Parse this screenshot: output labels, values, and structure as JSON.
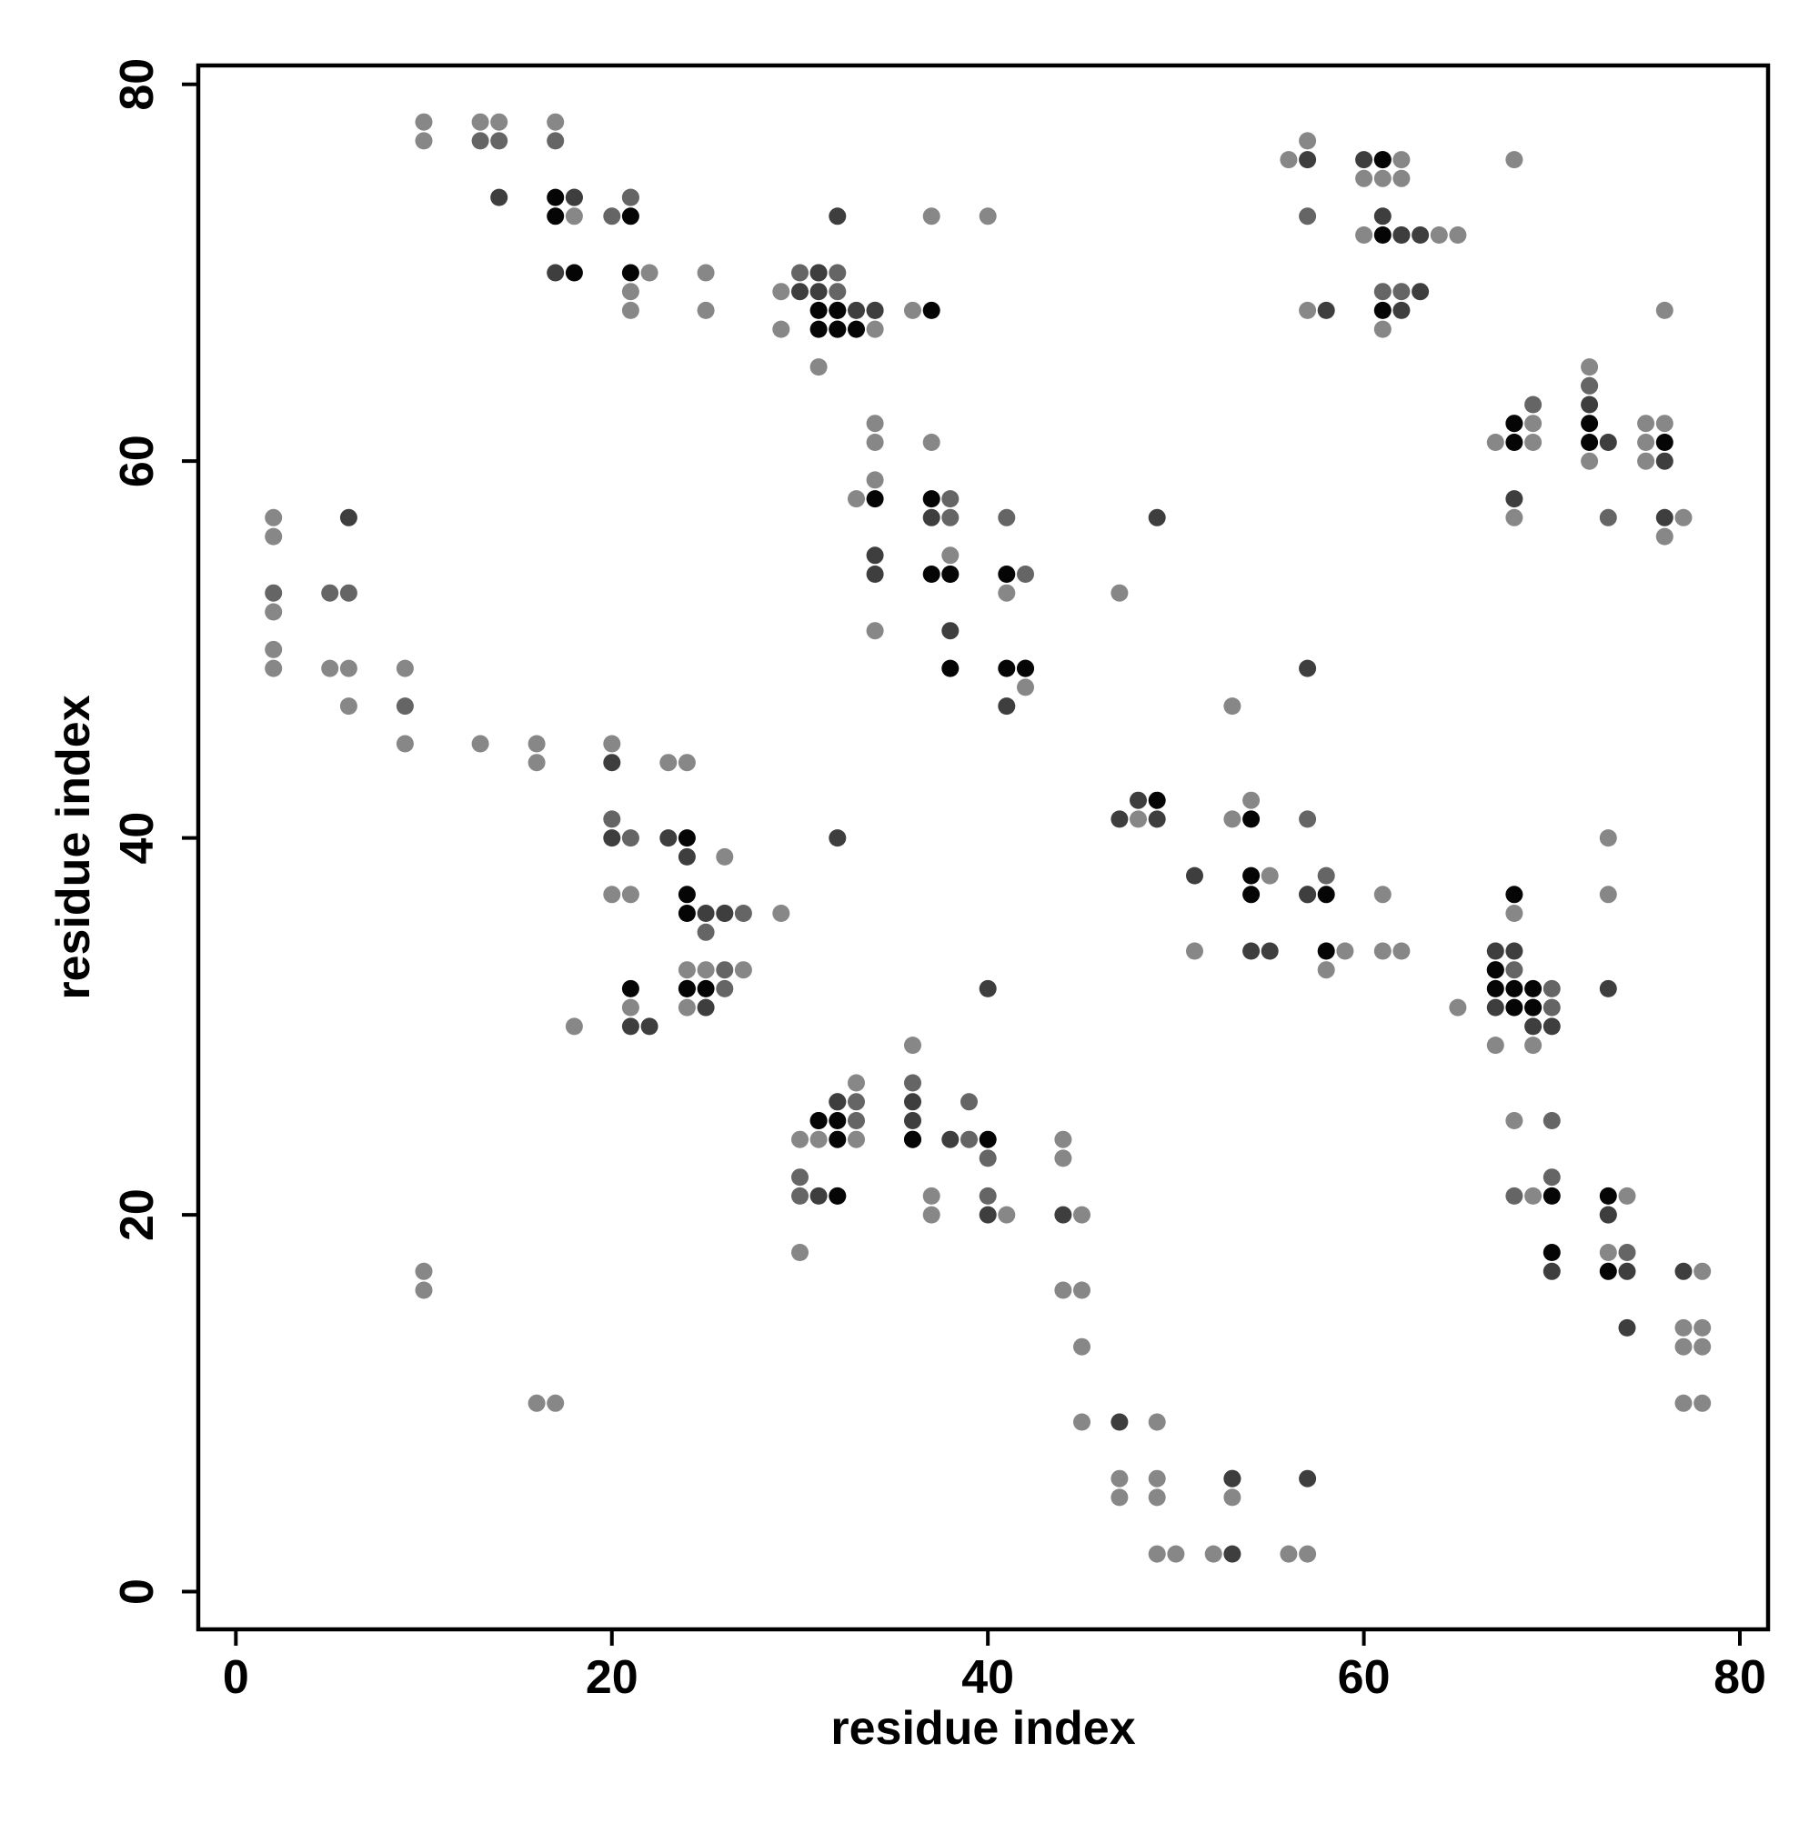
{
  "chart_data": {
    "type": "scatter",
    "title": "",
    "xlabel": "residue index",
    "ylabel": "residue index",
    "xlim": [
      -2,
      81.5
    ],
    "ylim": [
      -2,
      81
    ],
    "xticks": [
      0,
      20,
      40,
      60,
      80
    ],
    "yticks": [
      0,
      20,
      40,
      60,
      80
    ],
    "grid": false,
    "legend": "none",
    "shades": {
      "light": "#878787",
      "mid": "#656565",
      "dark": "#3e3e3e",
      "black": "#050505"
    },
    "points": {
      "light": [
        [
          10,
          78
        ],
        [
          10,
          77
        ],
        [
          13,
          78
        ],
        [
          14,
          78
        ],
        [
          17,
          78
        ],
        [
          21,
          74
        ],
        [
          18,
          73
        ],
        [
          22,
          70
        ],
        [
          25,
          70
        ],
        [
          21,
          69
        ],
        [
          21,
          68
        ],
        [
          25,
          68
        ],
        [
          29,
          69
        ],
        [
          29,
          67
        ],
        [
          34,
          67
        ],
        [
          31,
          65
        ],
        [
          36,
          68
        ],
        [
          37,
          73
        ],
        [
          40,
          73
        ],
        [
          2,
          57
        ],
        [
          2,
          56
        ],
        [
          2,
          52
        ],
        [
          2,
          50
        ],
        [
          2,
          49
        ],
        [
          5,
          49
        ],
        [
          6,
          49
        ],
        [
          6,
          47
        ],
        [
          9,
          49
        ],
        [
          9,
          45
        ],
        [
          13,
          45
        ],
        [
          16,
          45
        ],
        [
          16,
          44
        ],
        [
          20,
          45
        ],
        [
          23,
          44
        ],
        [
          24,
          44
        ],
        [
          21,
          37
        ],
        [
          20,
          37
        ],
        [
          24,
          33
        ],
        [
          25,
          33
        ],
        [
          24,
          31
        ],
        [
          21,
          31
        ],
        [
          18,
          30
        ],
        [
          26,
          39
        ],
        [
          27,
          33
        ],
        [
          29,
          36
        ],
        [
          34,
          62
        ],
        [
          34,
          61
        ],
        [
          34,
          59
        ],
        [
          33,
          58
        ],
        [
          34,
          51
        ],
        [
          37,
          61
        ],
        [
          38,
          55
        ],
        [
          41,
          53
        ],
        [
          42,
          48
        ],
        [
          36,
          29
        ],
        [
          33,
          27
        ],
        [
          30,
          24
        ],
        [
          31,
          24
        ],
        [
          33,
          24
        ],
        [
          37,
          21
        ],
        [
          37,
          20
        ],
        [
          41,
          20
        ],
        [
          45,
          20
        ],
        [
          44,
          24
        ],
        [
          44,
          23
        ],
        [
          44,
          16
        ],
        [
          45,
          16
        ],
        [
          45,
          13
        ],
        [
          45,
          9
        ],
        [
          49,
          9
        ],
        [
          47,
          6
        ],
        [
          49,
          6
        ],
        [
          47,
          5
        ],
        [
          49,
          5
        ],
        [
          49,
          2
        ],
        [
          50,
          2
        ],
        [
          52,
          2
        ],
        [
          56,
          2
        ],
        [
          57,
          2
        ],
        [
          30,
          18
        ],
        [
          10,
          17
        ],
        [
          10,
          16
        ],
        [
          16,
          10
        ],
        [
          17,
          10
        ],
        [
          47,
          53
        ],
        [
          48,
          41
        ],
        [
          53,
          47
        ],
        [
          53,
          41
        ],
        [
          54,
          42
        ],
        [
          51,
          34
        ],
        [
          55,
          38
        ],
        [
          58,
          33
        ],
        [
          59,
          34
        ],
        [
          61,
          37
        ],
        [
          61,
          34
        ],
        [
          62,
          34
        ],
        [
          56,
          76
        ],
        [
          57,
          77
        ],
        [
          57,
          68
        ],
        [
          60,
          75
        ],
        [
          60,
          72
        ],
        [
          61,
          75
        ],
        [
          62,
          76
        ],
        [
          62,
          75
        ],
        [
          61,
          67
        ],
        [
          64,
          72
        ],
        [
          65,
          72
        ],
        [
          68,
          76
        ],
        [
          68,
          57
        ],
        [
          67,
          61
        ],
        [
          69,
          62
        ],
        [
          69,
          61
        ],
        [
          72,
          65
        ],
        [
          72,
          64
        ],
        [
          72,
          60
        ],
        [
          75,
          62
        ],
        [
          75,
          61
        ],
        [
          75,
          60
        ],
        [
          76,
          62
        ],
        [
          76,
          56
        ],
        [
          77,
          57
        ],
        [
          76,
          68
        ],
        [
          65,
          31
        ],
        [
          67,
          29
        ],
        [
          68,
          36
        ],
        [
          69,
          29
        ],
        [
          68,
          25
        ],
        [
          69,
          21
        ],
        [
          73,
          40
        ],
        [
          73,
          37
        ],
        [
          74,
          21
        ],
        [
          73,
          18
        ],
        [
          78,
          17
        ],
        [
          77,
          14
        ],
        [
          78,
          14
        ],
        [
          77,
          13
        ],
        [
          78,
          13
        ],
        [
          77,
          10
        ],
        [
          78,
          10
        ],
        [
          53,
          5
        ]
      ],
      "mid": [
        [
          17,
          77
        ],
        [
          13,
          77
        ],
        [
          14,
          77
        ],
        [
          18,
          74
        ],
        [
          20,
          73
        ],
        [
          21,
          74
        ],
        [
          30,
          70
        ],
        [
          31,
          70
        ],
        [
          32,
          70
        ],
        [
          32,
          69
        ],
        [
          34,
          68
        ],
        [
          2,
          53
        ],
        [
          5,
          53
        ],
        [
          6,
          53
        ],
        [
          9,
          47
        ],
        [
          20,
          41
        ],
        [
          21,
          40
        ],
        [
          25,
          35
        ],
        [
          26,
          36
        ],
        [
          27,
          36
        ],
        [
          26,
          33
        ],
        [
          26,
          32
        ],
        [
          38,
          58
        ],
        [
          38,
          57
        ],
        [
          38,
          54
        ],
        [
          42,
          54
        ],
        [
          41,
          57
        ],
        [
          32,
          26
        ],
        [
          33,
          26
        ],
        [
          36,
          27
        ],
        [
          33,
          25
        ],
        [
          39,
          26
        ],
        [
          39,
          24
        ],
        [
          40,
          23
        ],
        [
          40,
          21
        ],
        [
          30,
          22
        ],
        [
          30,
          21
        ],
        [
          32,
          21
        ],
        [
          57,
          73
        ],
        [
          61,
          76
        ],
        [
          62,
          72
        ],
        [
          61,
          69
        ],
        [
          62,
          69
        ],
        [
          69,
          63
        ],
        [
          72,
          64
        ],
        [
          68,
          62
        ],
        [
          73,
          57
        ],
        [
          68,
          33
        ],
        [
          69,
          31
        ],
        [
          70,
          31
        ],
        [
          70,
          32
        ],
        [
          70,
          25
        ],
        [
          70,
          22
        ],
        [
          68,
          21
        ],
        [
          73,
          20
        ],
        [
          74,
          18
        ],
        [
          57,
          41
        ],
        [
          57,
          37
        ],
        [
          58,
          38
        ],
        [
          53,
          6
        ]
      ],
      "dark": [
        [
          14,
          74
        ],
        [
          17,
          70
        ],
        [
          18,
          74
        ],
        [
          32,
          73
        ],
        [
          30,
          69
        ],
        [
          31,
          70
        ],
        [
          32,
          68
        ],
        [
          33,
          68
        ],
        [
          34,
          68
        ],
        [
          31,
          69
        ],
        [
          32,
          67
        ],
        [
          6,
          57
        ],
        [
          20,
          40
        ],
        [
          20,
          44
        ],
        [
          23,
          40
        ],
        [
          24,
          39
        ],
        [
          25,
          36
        ],
        [
          25,
          31
        ],
        [
          21,
          30
        ],
        [
          22,
          30
        ],
        [
          24,
          32
        ],
        [
          26,
          36
        ],
        [
          34,
          55
        ],
        [
          34,
          54
        ],
        [
          37,
          57
        ],
        [
          38,
          51
        ],
        [
          41,
          47
        ],
        [
          42,
          49
        ],
        [
          49,
          57
        ],
        [
          49,
          41
        ],
        [
          31,
          25
        ],
        [
          32,
          26
        ],
        [
          36,
          26
        ],
        [
          36,
          25
        ],
        [
          38,
          24
        ],
        [
          40,
          20
        ],
        [
          44,
          20
        ],
        [
          36,
          24
        ],
        [
          31,
          21
        ],
        [
          47,
          9
        ],
        [
          53,
          6
        ],
        [
          57,
          6
        ],
        [
          53,
          2
        ],
        [
          32,
          40
        ],
        [
          40,
          32
        ],
        [
          57,
          76
        ],
        [
          58,
          68
        ],
        [
          60,
          76
        ],
        [
          61,
          73
        ],
        [
          62,
          72
        ],
        [
          63,
          72
        ],
        [
          63,
          69
        ],
        [
          62,
          68
        ],
        [
          68,
          58
        ],
        [
          72,
          63
        ],
        [
          73,
          61
        ],
        [
          76,
          57
        ],
        [
          76,
          60
        ],
        [
          47,
          41
        ],
        [
          48,
          42
        ],
        [
          51,
          38
        ],
        [
          54,
          34
        ],
        [
          55,
          34
        ],
        [
          57,
          49
        ],
        [
          57,
          37
        ],
        [
          67,
          34
        ],
        [
          68,
          34
        ],
        [
          67,
          33
        ],
        [
          67,
          31
        ],
        [
          69,
          30
        ],
        [
          70,
          30
        ],
        [
          73,
          32
        ],
        [
          70,
          17
        ],
        [
          74,
          17
        ],
        [
          74,
          14
        ],
        [
          77,
          17
        ],
        [
          73,
          20
        ]
      ],
      "black": [
        [
          17,
          74
        ],
        [
          17,
          73
        ],
        [
          18,
          70
        ],
        [
          21,
          73
        ],
        [
          21,
          70
        ],
        [
          31,
          68
        ],
        [
          31,
          67
        ],
        [
          32,
          67
        ],
        [
          32,
          68
        ],
        [
          33,
          67
        ],
        [
          37,
          68
        ],
        [
          24,
          40
        ],
        [
          24,
          37
        ],
        [
          24,
          36
        ],
        [
          24,
          32
        ],
        [
          25,
          32
        ],
        [
          21,
          32
        ],
        [
          34,
          58
        ],
        [
          37,
          58
        ],
        [
          37,
          54
        ],
        [
          38,
          54
        ],
        [
          38,
          49
        ],
        [
          41,
          54
        ],
        [
          41,
          49
        ],
        [
          42,
          49
        ],
        [
          31,
          25
        ],
        [
          32,
          25
        ],
        [
          32,
          24
        ],
        [
          36,
          24
        ],
        [
          40,
          24
        ],
        [
          32,
          21
        ],
        [
          61,
          76
        ],
        [
          61,
          72
        ],
        [
          61,
          68
        ],
        [
          68,
          62
        ],
        [
          68,
          61
        ],
        [
          72,
          62
        ],
        [
          72,
          61
        ],
        [
          76,
          61
        ],
        [
          49,
          42
        ],
        [
          54,
          41
        ],
        [
          54,
          38
        ],
        [
          54,
          37
        ],
        [
          58,
          37
        ],
        [
          58,
          34
        ],
        [
          68,
          37
        ],
        [
          67,
          33
        ],
        [
          68,
          32
        ],
        [
          69,
          32
        ],
        [
          67,
          32
        ],
        [
          69,
          31
        ],
        [
          68,
          31
        ],
        [
          70,
          21
        ],
        [
          70,
          18
        ],
        [
          73,
          21
        ],
        [
          73,
          17
        ]
      ]
    }
  }
}
